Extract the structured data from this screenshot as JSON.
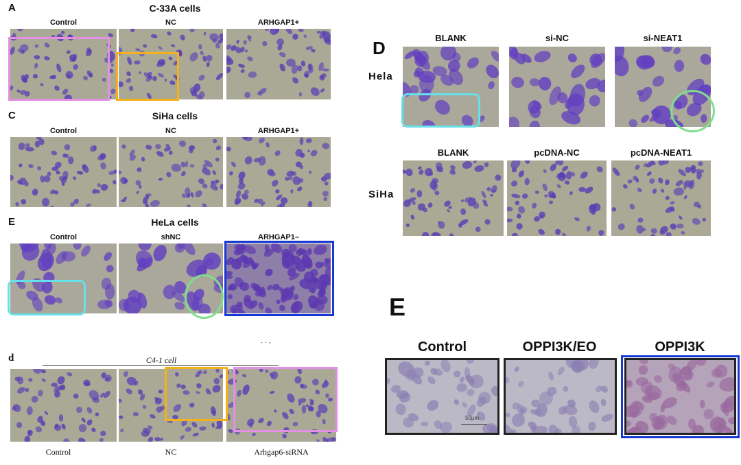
{
  "left": {
    "panelA": {
      "letter": "A",
      "title": "C-33A cells",
      "labels": [
        "Control",
        "NC",
        "ARHGAP1+"
      ]
    },
    "panelC": {
      "letter": "C",
      "title": "SiHa cells",
      "labels": [
        "Control",
        "NC",
        "ARHGAP1+"
      ]
    },
    "panelE": {
      "letter": "E",
      "title": "HeLa cells",
      "labels": [
        "Control",
        "shNC",
        "ARHGAP1–"
      ]
    },
    "panelD": {
      "letter": "d",
      "title": "C4-1   cell",
      "stray": "˙ ˙ ’",
      "labels": [
        "Control",
        "NC",
        "Arhgap6-siRNA"
      ]
    }
  },
  "right": {
    "panelD": {
      "letter": "D",
      "row1": {
        "label": "Hela",
        "cols": [
          "BLANK",
          "si-NC",
          "si-NEAT1"
        ]
      },
      "row2": {
        "label": "SiHa",
        "cols": [
          "BLANK",
          "pcDNA-NC",
          "pcDNA-NEAT1"
        ]
      }
    },
    "panelE": {
      "letter": "E",
      "labels": [
        "Control",
        "OPPI3K/EO",
        "OPPI3K"
      ],
      "scalebar": "50μm"
    }
  },
  "colors": {
    "stain": "#5b3fb0",
    "background_field": "#a9a996",
    "pink_box": "#e58fe5",
    "orange_box": "#f5b11c",
    "cyan_box": "#66e0ea",
    "green_circle": "#7ee08c",
    "blue_box": "#1539d1"
  }
}
